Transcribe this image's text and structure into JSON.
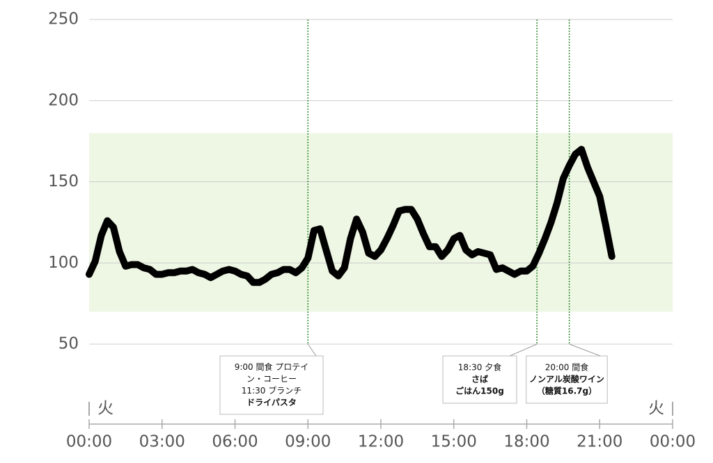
{
  "chart_data": {
    "type": "line",
    "xlim": [
      0,
      24
    ],
    "xticks": [
      {
        "value": 0,
        "label": "00:00"
      },
      {
        "value": 3,
        "label": "03:00"
      },
      {
        "value": 6,
        "label": "06:00"
      },
      {
        "value": 9,
        "label": "09:00"
      },
      {
        "value": 12,
        "label": "12:00"
      },
      {
        "value": 15,
        "label": "15:00"
      },
      {
        "value": 18,
        "label": "18:00"
      },
      {
        "value": 21,
        "label": "21:00"
      },
      {
        "value": 24,
        "label": "00:00"
      }
    ],
    "ylim": [
      50,
      250
    ],
    "yticks": [
      50,
      100,
      150,
      200,
      250
    ],
    "grid": true,
    "target_range": [
      70,
      180
    ],
    "target_color": "#eef6e4",
    "day_labels": [
      "火",
      "火"
    ],
    "x": [
      0,
      0.25,
      0.5,
      0.75,
      1,
      1.25,
      1.5,
      1.75,
      2,
      2.25,
      2.5,
      2.75,
      3,
      3.25,
      3.5,
      3.75,
      4,
      4.25,
      4.5,
      4.75,
      5,
      5.25,
      5.5,
      5.75,
      6,
      6.25,
      6.5,
      6.75,
      7,
      7.25,
      7.5,
      7.75,
      8,
      8.25,
      8.5,
      8.75,
      9,
      9.25,
      9.5,
      9.75,
      10,
      10.25,
      10.5,
      10.75,
      11,
      11.25,
      11.5,
      11.75,
      12,
      12.25,
      12.5,
      12.75,
      13,
      13.25,
      13.5,
      13.75,
      14,
      14.25,
      14.5,
      14.75,
      15,
      15.25,
      15.5,
      15.75,
      16,
      16.25,
      16.5,
      16.75,
      17,
      17.25,
      17.5,
      17.75,
      18,
      18.25,
      18.5,
      18.75,
      19,
      19.25,
      19.5,
      19.75,
      20,
      20.25,
      20.5,
      20.75,
      21,
      21.25,
      21.5
    ],
    "series": [
      {
        "color": "#000000",
        "values": [
          93,
          101,
          117,
          126,
          122,
          107,
          98,
          99,
          99,
          97,
          96,
          93,
          93,
          94,
          94,
          95,
          95,
          96,
          94,
          93,
          91,
          93,
          95,
          96,
          95,
          93,
          92,
          88,
          88,
          90,
          93,
          94,
          96,
          96,
          94,
          97,
          103,
          120,
          121,
          108,
          95,
          92,
          97,
          115,
          127,
          119,
          106,
          104,
          108,
          115,
          123,
          132,
          133,
          133,
          127,
          118,
          110,
          110,
          104,
          108,
          115,
          117,
          108,
          105,
          107,
          106,
          105,
          96,
          97,
          95,
          93,
          95,
          95,
          98,
          106,
          115,
          125,
          137,
          152,
          160,
          167,
          170,
          159,
          150,
          141,
          123,
          104
        ]
      }
    ],
    "annotations": [
      {
        "x": 9,
        "box_center": 390,
        "lines": [
          {
            "text": "9:00 間食 プロテイ",
            "bold": false
          },
          {
            "text": "ン・コーヒー",
            "bold": false
          },
          {
            "text": "11:30 ブランチ",
            "bold": false
          },
          {
            "text": "ドライパスタ",
            "bold": true
          }
        ]
      },
      {
        "x": 18.42,
        "box_center": 689,
        "lines": [
          {
            "text": "18:30 夕食",
            "bold": false
          },
          {
            "text": "さば",
            "bold": true
          },
          {
            "text": "ごはん150g",
            "bold": true
          }
        ]
      },
      {
        "x": 19.75,
        "box_center": 814,
        "lines": [
          {
            "text": "20:00 間食",
            "bold": false
          },
          {
            "text": "ノンアル炭酸ワイン",
            "bold": true
          },
          {
            "text": "（糖質16.7g）",
            "bold": true
          }
        ]
      }
    ]
  }
}
